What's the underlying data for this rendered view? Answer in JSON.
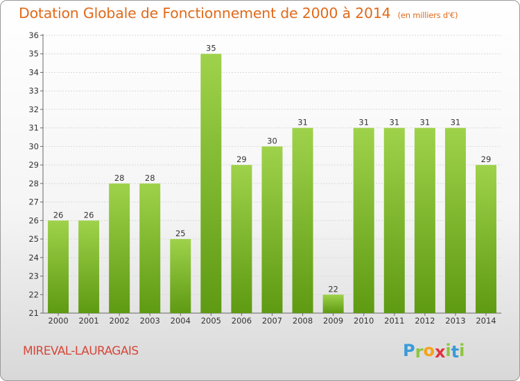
{
  "header": {
    "title": "Dotation Globale de Fonctionnement de 2000 à 2014",
    "unit": "(en milliers d'€)"
  },
  "footer": {
    "commune": "MIREVAL-LAURAGAIS",
    "logo": {
      "letters": [
        "P",
        "r",
        "o",
        "x",
        "i",
        "t",
        "i"
      ],
      "colors": [
        "#3a9bd8",
        "#8cc63f",
        "#f7a21b",
        "#e2333c",
        "#8cc63f",
        "#3a9bd8",
        "#8cc63f"
      ]
    }
  },
  "colors": {
    "title": "#e06a1a",
    "commune": "#d6483a",
    "bar_light": "#9fd24b",
    "bar_dark": "#5e9a12",
    "grid": "#d8d8d8"
  },
  "chart_data": {
    "type": "bar",
    "categories": [
      "2000",
      "2001",
      "2002",
      "2003",
      "2004",
      "2005",
      "2006",
      "2007",
      "2008",
      "2009",
      "2010",
      "2011",
      "2012",
      "2013",
      "2014"
    ],
    "values": [
      26,
      26,
      28,
      28,
      25,
      35,
      29,
      30,
      31,
      22,
      31,
      31,
      31,
      31,
      29
    ],
    "data_labels": [
      "26",
      "26",
      "28",
      "28",
      "25",
      "35",
      "29",
      "30",
      "31",
      "22",
      "31",
      "31",
      "31",
      "31",
      "29"
    ],
    "yticks": [
      "21",
      "22",
      "23",
      "24",
      "25",
      "26",
      "27",
      "28",
      "29",
      "30",
      "31",
      "32",
      "33",
      "34",
      "35",
      "36"
    ],
    "ylim": [
      21,
      36
    ],
    "grid": true,
    "title": "Dotation Globale de Fonctionnement de 2000 à 2014",
    "xlabel": "",
    "ylabel": ""
  }
}
